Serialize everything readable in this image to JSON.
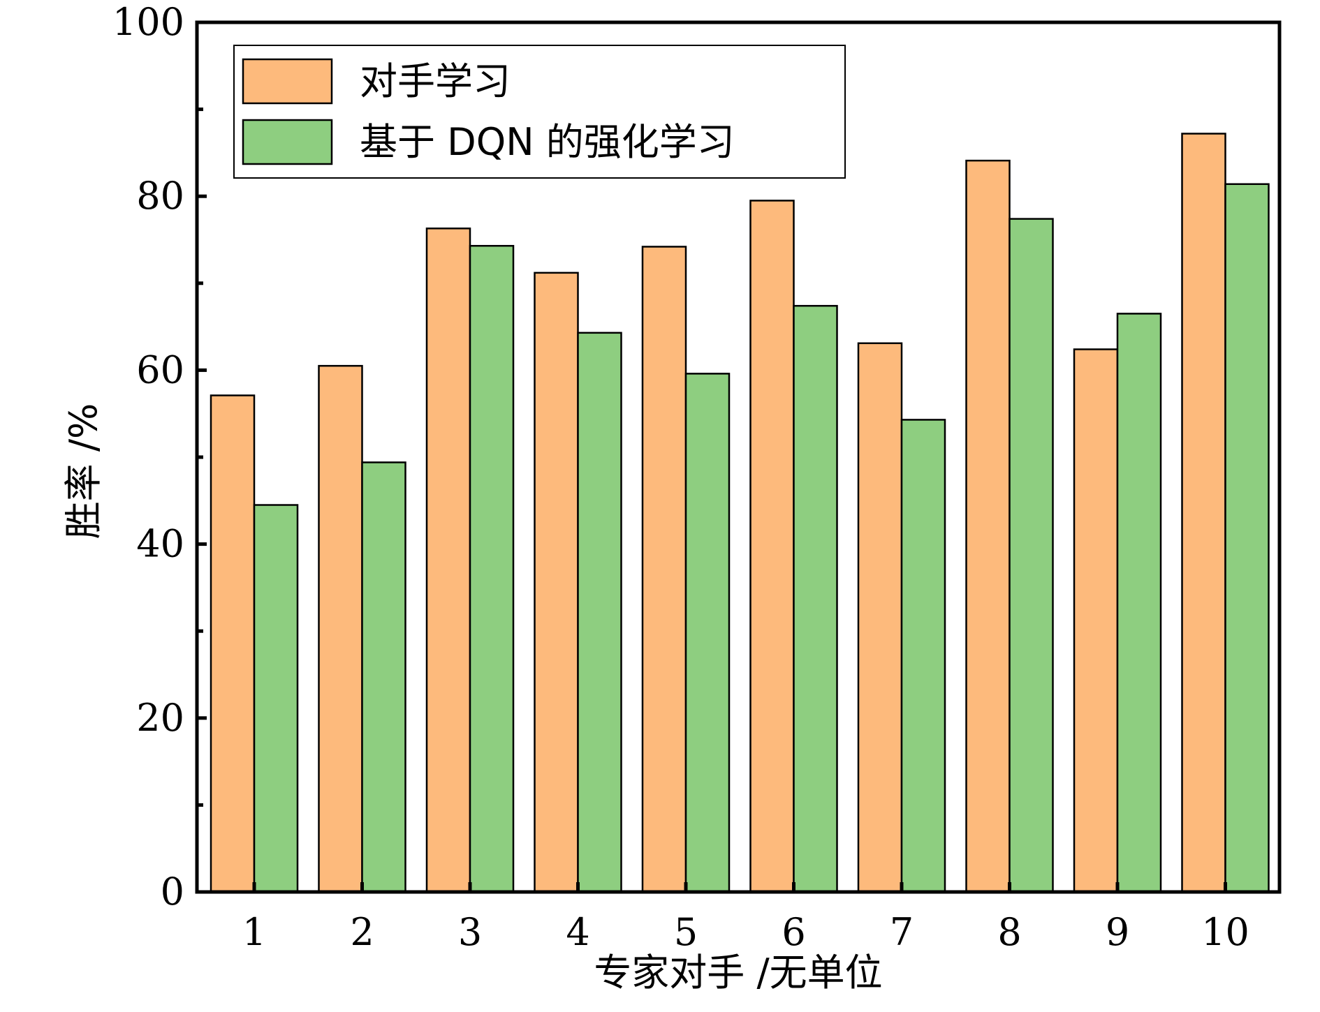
{
  "chart_data": {
    "type": "bar",
    "title": "",
    "xlabel": "专家对手 /无单位",
    "ylabel": "胜率 /%",
    "categories": [
      "1",
      "2",
      "3",
      "4",
      "5",
      "6",
      "7",
      "8",
      "9",
      "10"
    ],
    "series": [
      {
        "name": "对手学习",
        "color": "#FDBA7C",
        "values": [
          57.1,
          60.5,
          76.3,
          71.2,
          74.2,
          79.5,
          63.1,
          84.1,
          62.4,
          87.2
        ]
      },
      {
        "name": "基于 DQN 的强化学习",
        "color": "#8ECE80",
        "values": [
          44.5,
          49.4,
          74.3,
          64.3,
          59.6,
          67.4,
          54.3,
          77.4,
          66.5,
          81.4
        ]
      }
    ],
    "ylim": [
      0,
      100
    ],
    "yticks": [
      0,
      20,
      40,
      60,
      80,
      100
    ],
    "grid": false,
    "legend_position": "top-left"
  }
}
